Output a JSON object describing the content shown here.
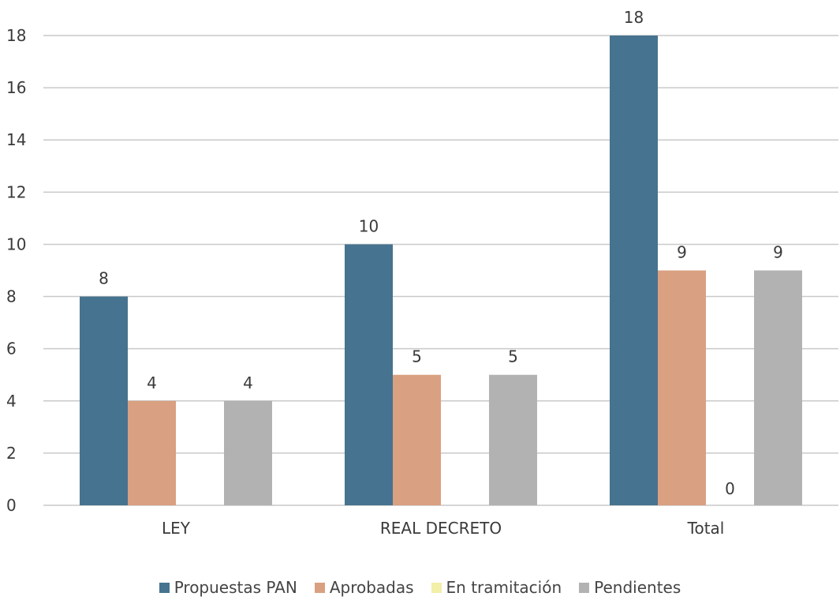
{
  "chart_data": {
    "type": "bar",
    "categories": [
      "LEY",
      "REAL DECRETO",
      "Total"
    ],
    "series": [
      {
        "name": "Propuestas PAN",
        "values": [
          8,
          10,
          18
        ],
        "color": "#46738F"
      },
      {
        "name": "Aprobadas",
        "values": [
          4,
          5,
          9
        ],
        "color": "#D9A081"
      },
      {
        "name": "En tramitación",
        "values": [
          0,
          0,
          0
        ],
        "color": "#F2EFA8"
      },
      {
        "name": "Pendientes",
        "values": [
          4,
          5,
          9
        ],
        "color": "#B2B2B2"
      }
    ],
    "data_labels": [
      [
        "8",
        "10",
        "18"
      ],
      [
        "4",
        "5",
        "9"
      ],
      [
        "",
        "",
        "0"
      ],
      [
        "4",
        "5",
        "9"
      ]
    ],
    "ylim": [
      0,
      18
    ],
    "yticks": [
      "0",
      "2",
      "4",
      "6",
      "8",
      "10",
      "12",
      "14",
      "16",
      "18"
    ],
    "grid": true,
    "legend_position": "bottom",
    "title": "",
    "xlabel": "",
    "ylabel": ""
  }
}
